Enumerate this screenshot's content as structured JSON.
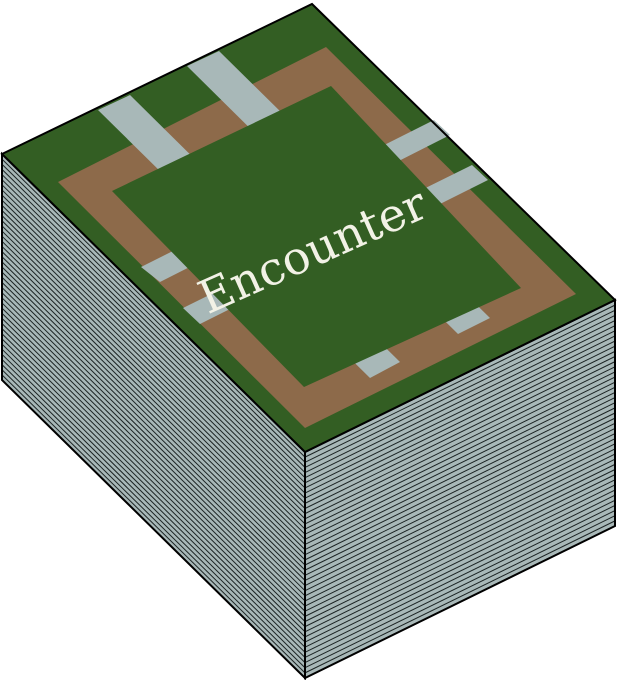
{
  "deck": {
    "title": "Encounter",
    "colors": {
      "card_green": "#335e23",
      "path_brown": "#8d6a4a",
      "road_grey": "#a8b8b8",
      "page_edge": "#a8b8b8",
      "outline": "#000000",
      "title_text": "#f2f2e6"
    }
  }
}
